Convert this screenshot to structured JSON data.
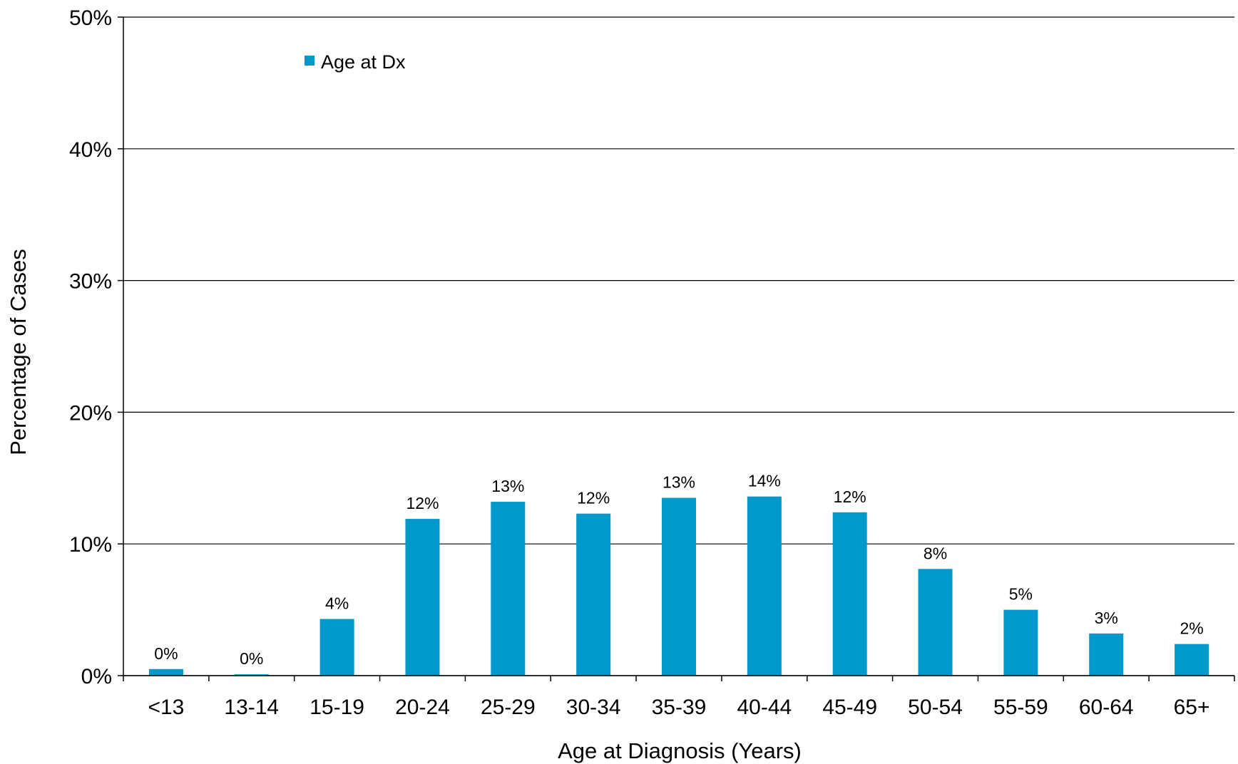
{
  "chart_data": {
    "type": "bar",
    "title": "",
    "xlabel": "Age at Diagnosis (Years)",
    "ylabel": "Percentage of Cases",
    "ylim": [
      0,
      50
    ],
    "yticks": [
      0,
      10,
      20,
      30,
      40,
      50
    ],
    "ytick_labels": [
      "0%",
      "10%",
      "20%",
      "30%",
      "40%",
      "50%"
    ],
    "grid": "horizontal",
    "legend_position": "top-left",
    "categories": [
      "<13",
      "13-14",
      "15-19",
      "20-24",
      "25-29",
      "30-34",
      "35-39",
      "40-44",
      "45-49",
      "50-54",
      "55-59",
      "60-64",
      "65+"
    ],
    "series": [
      {
        "name": "Age at Dx",
        "color": "#0099CC",
        "values": [
          0.5,
          0.1,
          4.3,
          11.9,
          13.2,
          12.3,
          13.5,
          13.6,
          12.4,
          8.1,
          5.0,
          3.2,
          2.4
        ],
        "data_labels": [
          "0%",
          "0%",
          "4%",
          "12%",
          "13%",
          "12%",
          "13%",
          "14%",
          "12%",
          "8%",
          "5%",
          "3%",
          "2%"
        ]
      }
    ]
  }
}
